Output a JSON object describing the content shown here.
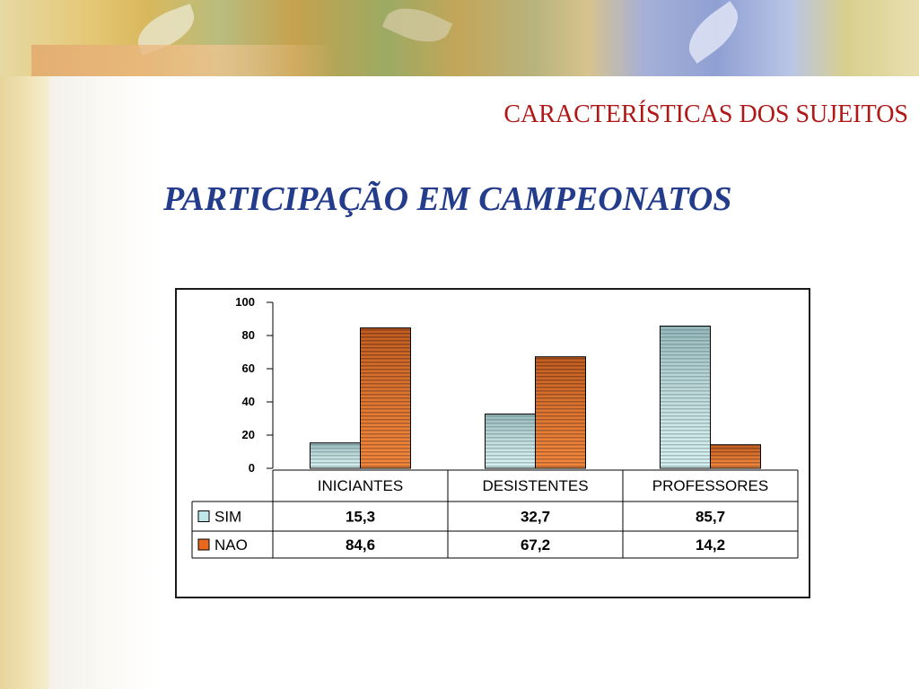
{
  "slide": {
    "title": "CARACTERÍSTICAS DOS SUJEITOS",
    "subtitle": "PARTICIPAÇÃO EM CAMPEONATOS"
  },
  "chart_data": {
    "type": "bar",
    "categories": [
      "INICIANTES",
      "DESISTENTES",
      "PROFESSORES"
    ],
    "series": [
      {
        "name": "SIM",
        "values": [
          15.3,
          32.7,
          85.7
        ],
        "labels": [
          "15,3",
          "32,7",
          "85,7"
        ],
        "color": "#bfe7ea"
      },
      {
        "name": "NAO",
        "values": [
          84.6,
          67.2,
          14.2
        ],
        "labels": [
          "84,6",
          "67,2",
          "14,2"
        ],
        "color": "#e8691d"
      }
    ],
    "yticks": [
      "0",
      "20",
      "40",
      "60",
      "80",
      "100"
    ],
    "ylim": [
      0,
      100
    ],
    "grid": false,
    "legend": "data-table-left"
  }
}
